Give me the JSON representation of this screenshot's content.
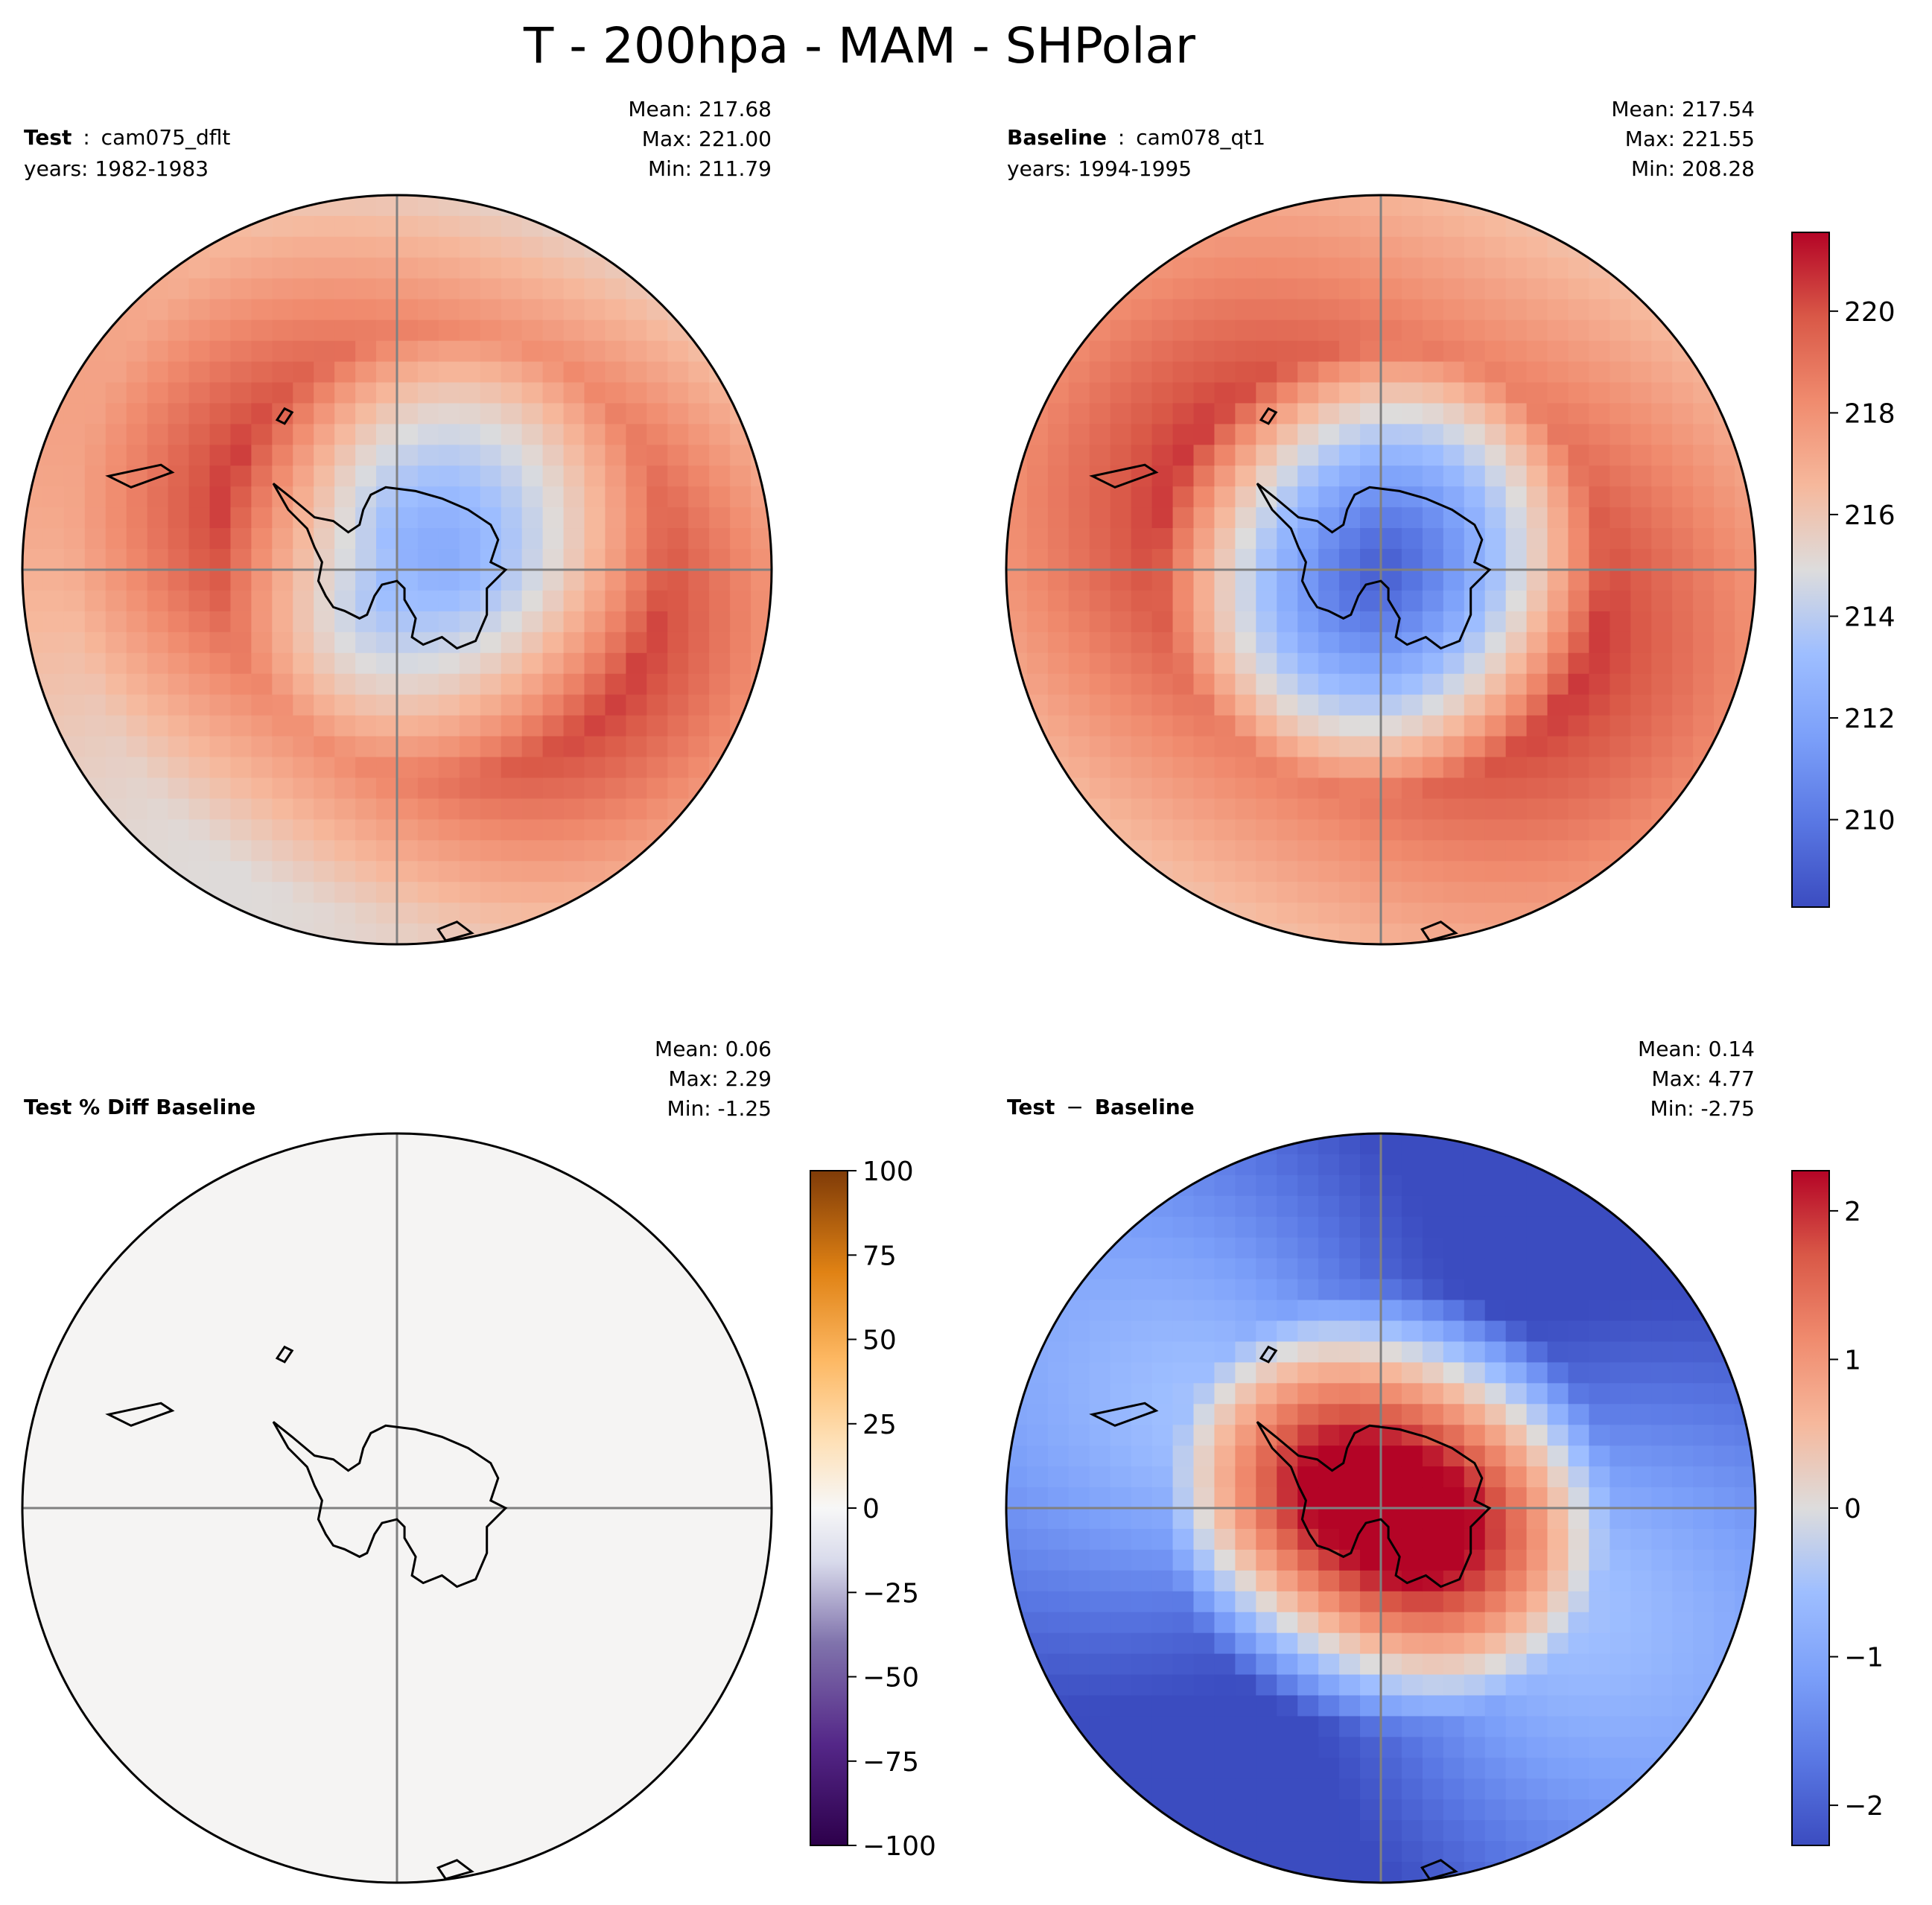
{
  "figure_title": "T - 200hpa - MAM - SHPolar",
  "chart_data": [
    {
      "type": "heatmap",
      "projection": "south-polar-stereographic",
      "panel": "test",
      "label_bold": "Test",
      "label_sep": ":",
      "label_rest": "cam075_dflt",
      "years": "years: 1982-1983",
      "stats": {
        "mean": "Mean: 217.68",
        "max": "Max: 221.00",
        "min": "Min: 211.79"
      },
      "field": {
        "pole_value": 212.2,
        "pole_offset": [
          0.12,
          -0.04
        ],
        "ring_value": 219.3,
        "edge_value": 216.2,
        "wave_amplitude": 1.2
      },
      "colormap": "coolwarm",
      "vmin": 208.28,
      "vmax": 221.55
    },
    {
      "type": "heatmap",
      "projection": "south-polar-stereographic",
      "panel": "baseline",
      "label_bold": "Baseline",
      "label_sep": ":",
      "label_rest": "cam078_qt1",
      "years": "years: 1994-1995",
      "stats": {
        "mean": "Mean: 217.54",
        "max": "Max: 221.55",
        "min": "Min: 208.28"
      },
      "field": {
        "pole_value": 209.0,
        "pole_offset": [
          0.0,
          0.0
        ],
        "ring_value": 219.6,
        "edge_value": 217.3,
        "wave_amplitude": 1.0
      },
      "colormap": "coolwarm",
      "vmin": 208.28,
      "vmax": 221.55,
      "colorbar": {
        "ticks": [
          210,
          212,
          214,
          216,
          218,
          220
        ],
        "tick_labels": [
          "210",
          "212",
          "214",
          "216",
          "218",
          "220"
        ],
        "range": [
          208.28,
          221.55
        ]
      }
    },
    {
      "type": "heatmap",
      "projection": "south-polar-stereographic",
      "panel": "pct_diff",
      "label_bold": "Test % Diff Baseline",
      "stats": {
        "mean": "Mean:  0.06",
        "max": "Max:  2.29",
        "min": "Min: -1.25"
      },
      "colormap": "PuOr_r",
      "fill_color": "#f5f4f3",
      "colorbar": {
        "ticks": [
          -100,
          -75,
          -50,
          -25,
          0,
          25,
          50,
          75,
          100
        ],
        "tick_labels": [
          "−100",
          "−75",
          "−50",
          "−25",
          "0",
          "25",
          "50",
          "75",
          "100"
        ],
        "range": [
          -100,
          100
        ]
      }
    },
    {
      "type": "heatmap",
      "projection": "south-polar-stereographic",
      "panel": "diff",
      "label_bold": "Test",
      "label_sep": "−",
      "label_rest": "Baseline",
      "stats": {
        "mean": "Mean:  0.14",
        "max": "Max:  4.77",
        "min": "Min: -2.75"
      },
      "field": {
        "pole_value": 3.2,
        "pole_offset": [
          0.02,
          0.0
        ],
        "ring_value": -1.4,
        "edge_value": -1.8,
        "wave_amplitude": 0.9
      },
      "colormap": "coolwarm",
      "vmin": -2.27,
      "vmax": 2.27,
      "colorbar": {
        "ticks": [
          -2,
          -1,
          0,
          1,
          2
        ],
        "tick_labels": [
          "−2",
          "−1",
          "0",
          "1",
          "2"
        ],
        "range": [
          -2.27,
          2.27
        ]
      }
    }
  ]
}
